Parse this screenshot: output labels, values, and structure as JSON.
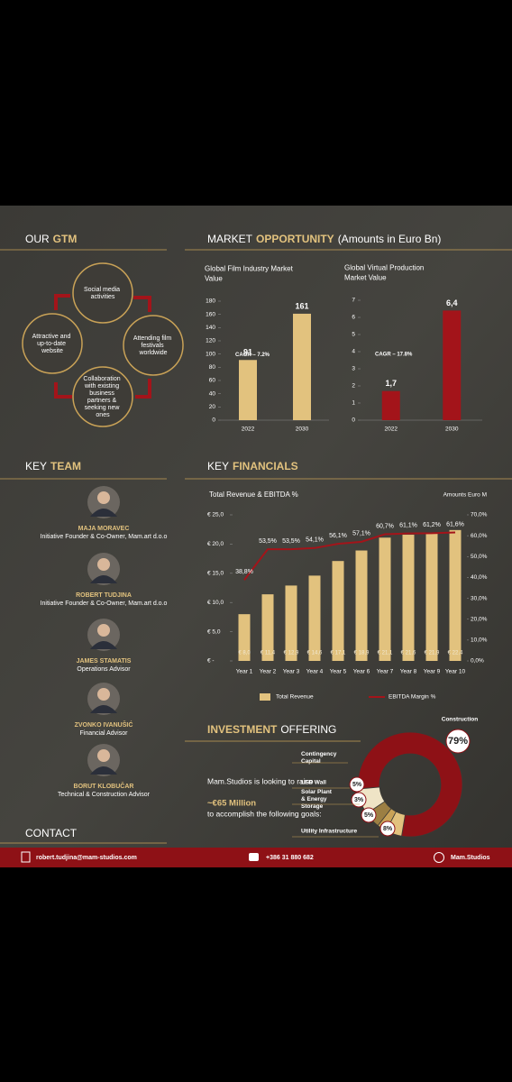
{
  "headers": [
    {
      "parts": [
        {
          "text": "OUR",
          "accent": false
        },
        {
          "text": "GTM",
          "accent": true
        }
      ]
    },
    {
      "parts": [
        {
          "text": "MARKET",
          "accent": false
        },
        {
          "text": "OPPORTUNITY",
          "accent": true
        },
        {
          "text": "(Amounts in Euro Bn)",
          "accent": false
        }
      ]
    },
    {
      "parts": [
        {
          "text": "KEY",
          "accent": false
        },
        {
          "text": "TEAM",
          "accent": true
        }
      ]
    },
    {
      "parts": [
        {
          "text": "KEY",
          "accent": false
        },
        {
          "text": "FINANCIALS",
          "accent": true
        }
      ]
    },
    {
      "parts": [
        {
          "text": "INVESTMENT",
          "accent": true
        },
        {
          "text": "OFFERING",
          "accent": false
        }
      ]
    },
    {
      "parts": [
        {
          "text": "CONTACT",
          "accent": false
        }
      ]
    }
  ],
  "gtm": [
    "Social media activities",
    "Attending film festivals worldwide",
    "Collaboration with existing business partners & seeking new ones",
    "Attractive and up-to-date website"
  ],
  "team": [
    {
      "name": "MAJA MORAVEC",
      "role": "Initiative Founder & Co-Owner, Mam.art d.o.o"
    },
    {
      "name": "ROBERT TUDJINA",
      "role": "Initiative Founder & Co-Owner, Mam.art d.o.o"
    },
    {
      "name": "JAMES STAMATIS",
      "role": "Operations Advisor"
    },
    {
      "name": "ZVONKO IVANUŠIĆ",
      "role": "Financial Advisor"
    },
    {
      "name": "BORUT KLOBUČAR",
      "role": "Technical & Construction Advisor"
    }
  ],
  "investment": {
    "lead": "Mam.Studios is looking to raise",
    "amount": "~€65 Million",
    "tail": "to accomplish the following goals:"
  },
  "contact": {
    "email": "robert.tudjina@mam-studios.com",
    "phone": "+386 31 880 682",
    "web": "Mam.Studios"
  },
  "chart_data": [
    {
      "type": "bar",
      "title": "Global Film Industry Market Value",
      "annotation": "CAGR – 7.2%",
      "categories": [
        "2022",
        "2030"
      ],
      "values": [
        91,
        161
      ],
      "color": "#e2c27e",
      "ylim": [
        0,
        180
      ],
      "yticks": [
        0,
        20,
        40,
        60,
        80,
        100,
        120,
        140,
        160,
        180
      ]
    },
    {
      "type": "bar",
      "title": "Global Virtual Production Market Value",
      "annotation": "CAGR – 17.8%",
      "categories": [
        "2022",
        "2030"
      ],
      "values": [
        1.7,
        6.4
      ],
      "value_labels": [
        "1,7",
        "6,4"
      ],
      "color": "#a3141a",
      "ylim": [
        0,
        7
      ],
      "yticks": [
        0,
        1,
        2,
        3,
        4,
        5,
        6,
        7
      ]
    },
    {
      "type": "combo",
      "title": "Total Revenue & EBITDA %",
      "annotation": "Amounts Euro M",
      "categories": [
        "Year 1",
        "Year 2",
        "Year 3",
        "Year 4",
        "Year 5",
        "Year 6",
        "Year 7",
        "Year 8",
        "Year 9",
        "Year 10"
      ],
      "series": [
        {
          "name": "Total Revenue",
          "color": "#e2c27e",
          "values": [
            8.0,
            11.4,
            12.9,
            14.6,
            17.1,
            18.9,
            21.1,
            21.6,
            21.9,
            22.4
          ],
          "value_labels": [
            "€ 8,0",
            "€ 11,4",
            "€ 12,9",
            "€ 14,6",
            "€ 17,1",
            "€ 18,9",
            "€ 21,1",
            "€ 21,6",
            "€ 21,9",
            "€ 22,4"
          ]
        },
        {
          "name": "EBITDA Margin %",
          "color": "#a3141a",
          "axis": "y2",
          "values": [
            38.8,
            53.5,
            53.5,
            54.1,
            56.1,
            57.1,
            60.7,
            61.1,
            61.2,
            61.6
          ],
          "value_labels": [
            "38,8%",
            "53,5%",
            "53,5%",
            "54,1%",
            "56,1%",
            "57,1%",
            "60,7%",
            "61,1%",
            "61,2%",
            "61,6%"
          ]
        }
      ],
      "ylim": [
        0,
        25
      ],
      "yticks": [
        {
          "value": 0,
          "label": "€ -"
        },
        {
          "value": 5,
          "label": "€ 5,0"
        },
        {
          "value": 10,
          "label": "€ 10,0"
        },
        {
          "value": 15,
          "label": "€ 15,0"
        },
        {
          "value": 20,
          "label": "€ 20,0"
        },
        {
          "value": 25,
          "label": "€ 25,0"
        }
      ],
      "y2lim": [
        0,
        70
      ],
      "y2ticks": [
        {
          "value": 0,
          "label": "0,0%"
        },
        {
          "value": 10,
          "label": "10,0%"
        },
        {
          "value": 20,
          "label": "20,0%"
        },
        {
          "value": 30,
          "label": "30,0%"
        },
        {
          "value": 40,
          "label": "40,0%"
        },
        {
          "value": 50,
          "label": "50,0%"
        },
        {
          "value": 60,
          "label": "60,0%"
        },
        {
          "value": 70,
          "label": "70,0%"
        }
      ],
      "legend": "bottom"
    },
    {
      "type": "pie",
      "hole": true,
      "categories": [
        "Construction",
        "Contingency Capital",
        "LED Wall",
        "Solar Plant & Energy Storage",
        "Utility Infrastructure"
      ],
      "values": [
        79,
        5,
        3,
        5,
        8
      ],
      "value_labels": [
        "79%",
        "5%",
        "3%",
        "5%",
        "8%"
      ],
      "colors": [
        "#8e1116",
        "#e2c27e",
        "#c9a257",
        "#9c7f43",
        "#efe4c6"
      ]
    }
  ]
}
